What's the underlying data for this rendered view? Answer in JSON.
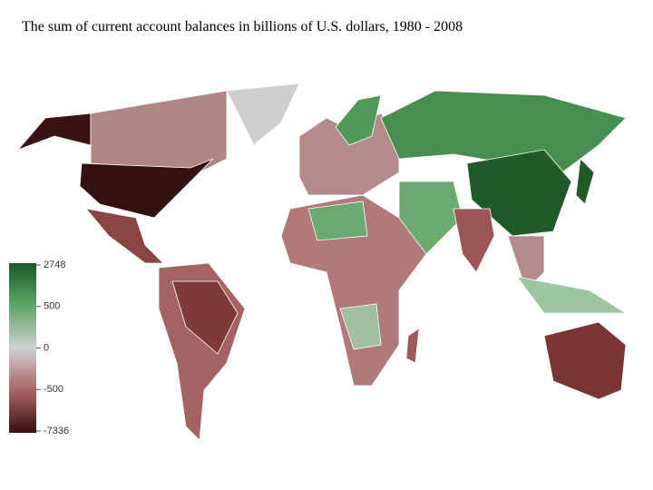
{
  "title": "The sum of current account balances in billions of U.S. dollars, 1980 - 2008",
  "legend": {
    "ticks": [
      2748,
      500,
      0,
      -500,
      -7336
    ]
  }
}
